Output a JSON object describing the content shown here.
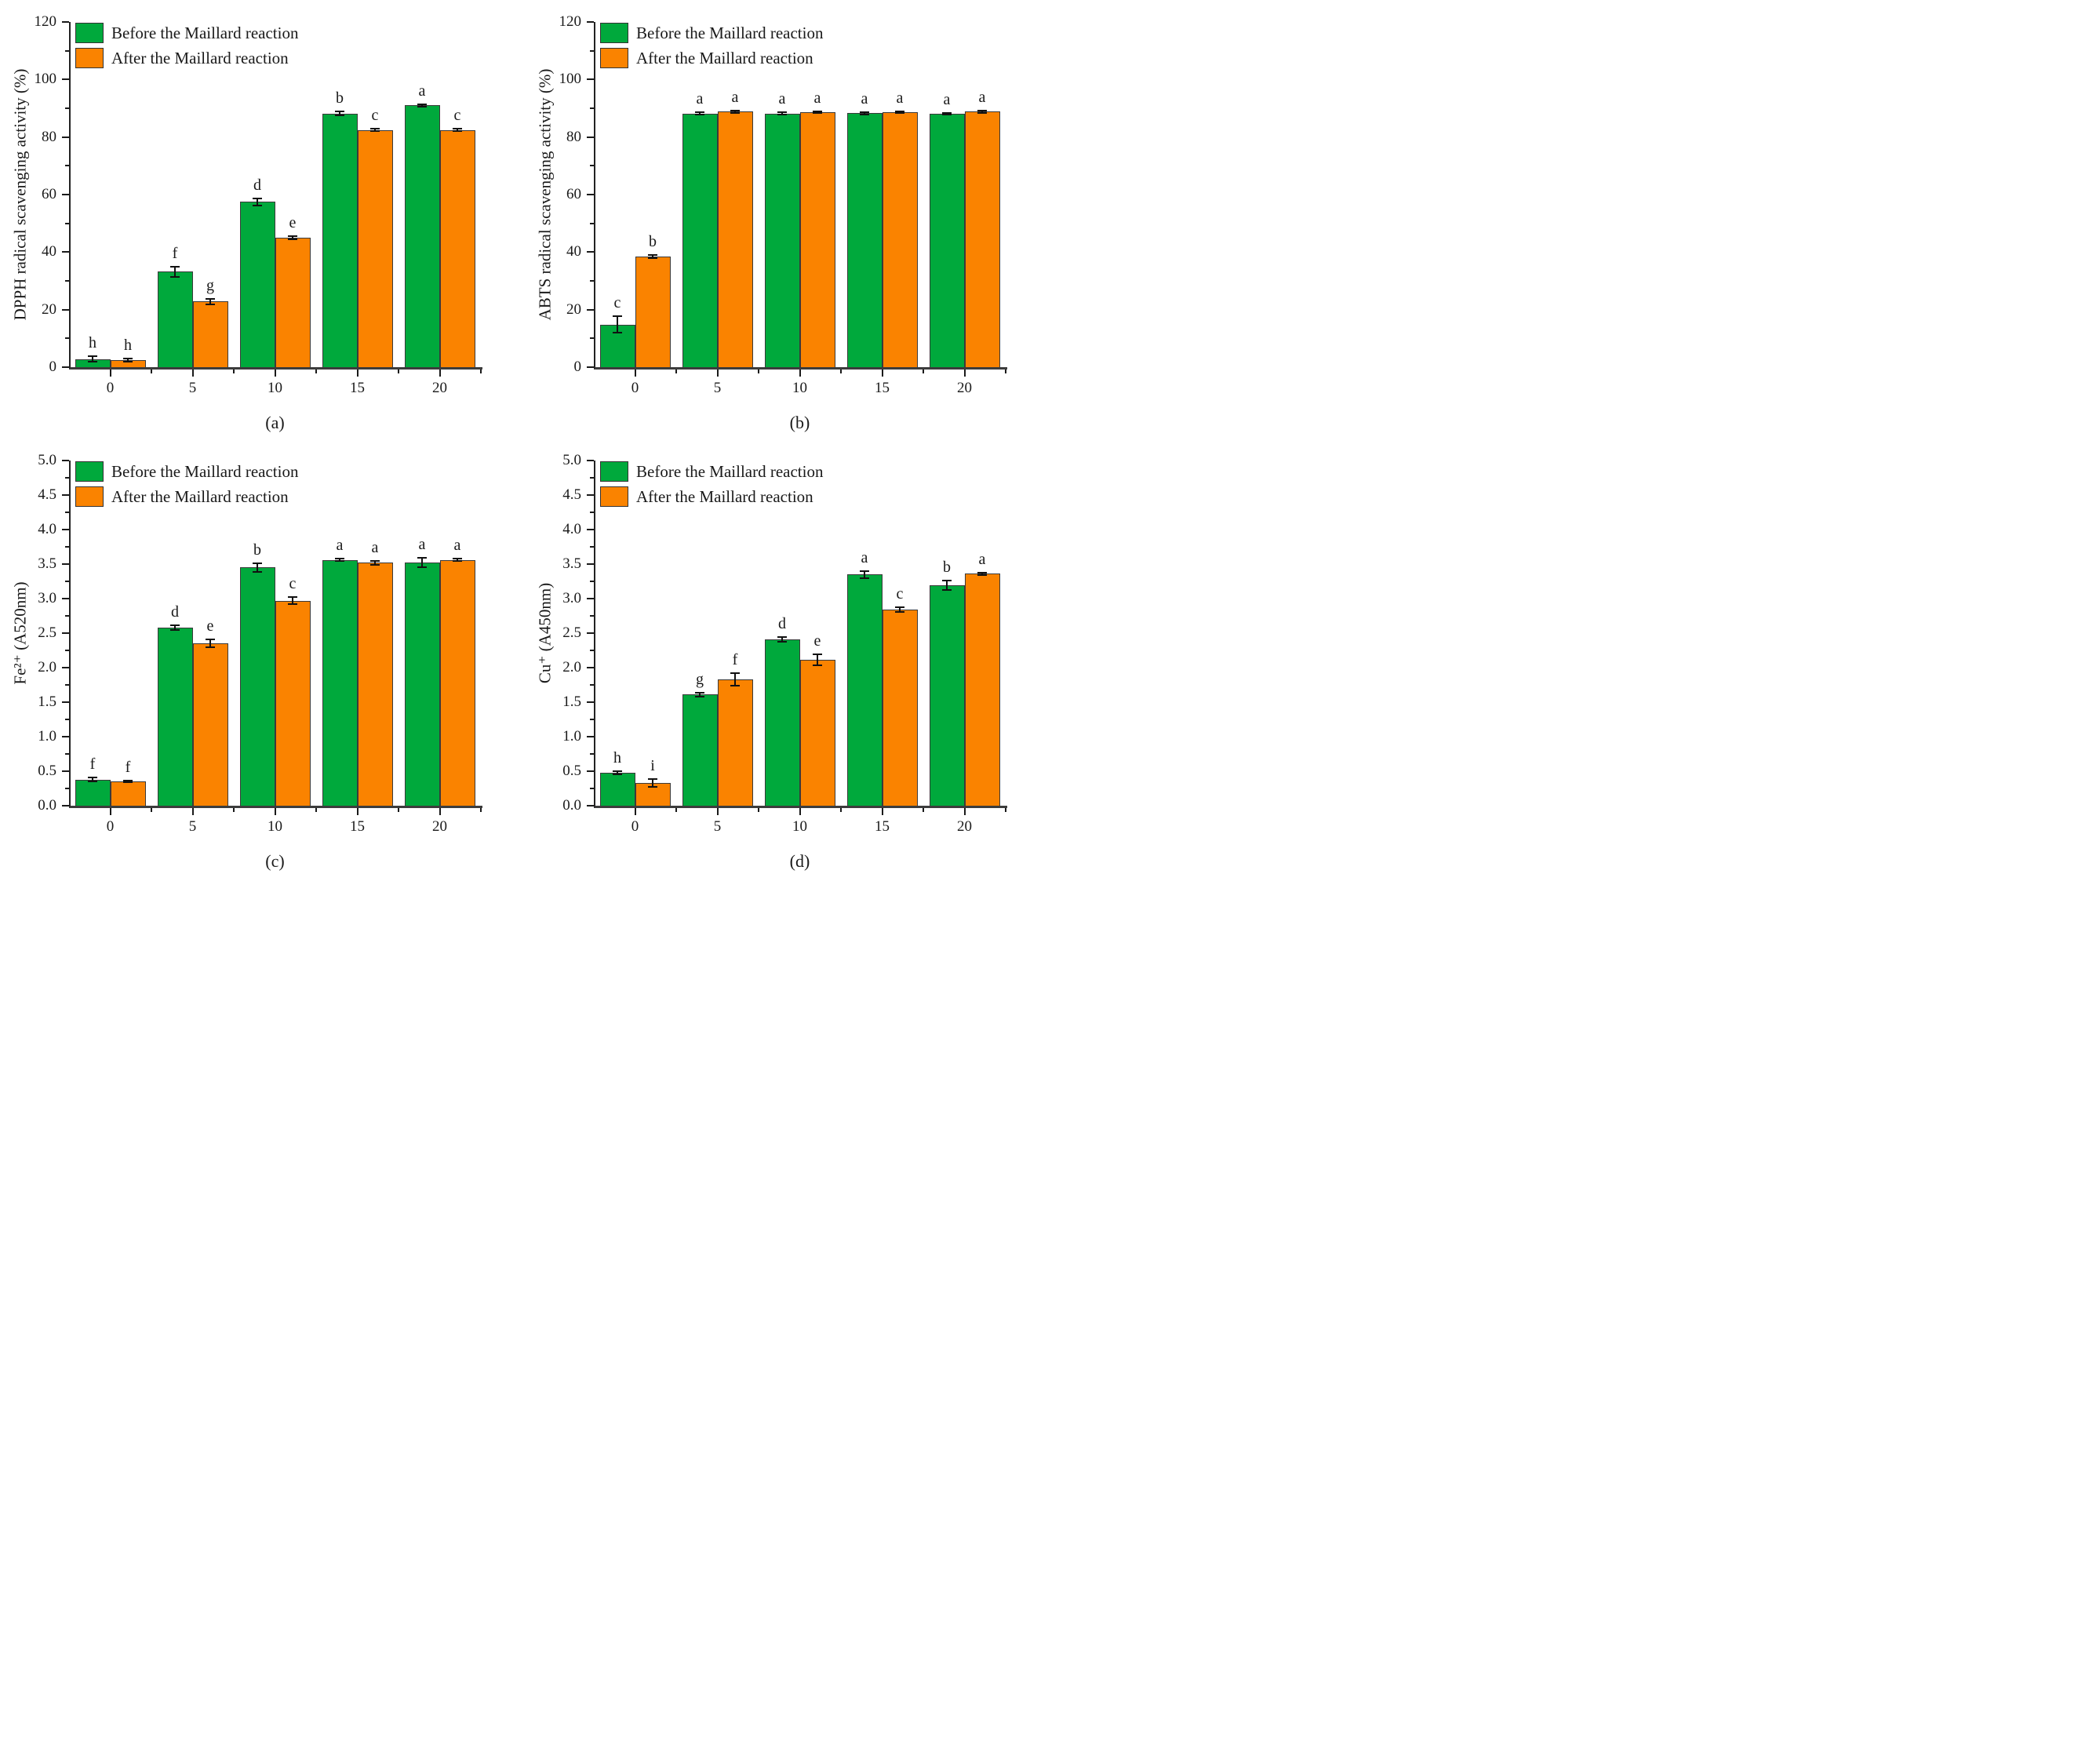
{
  "figure": {
    "legend": {
      "before": "Before the Maillard reaction",
      "after": "After the Maillard reaction"
    },
    "colors": {
      "before": "#00A93C",
      "after": "#FA8300",
      "bar_border": "#3a3a3a",
      "axis": "#222222",
      "error": "#111111",
      "text": "#1a1a1a"
    }
  },
  "chart_data": [
    {
      "id": "a",
      "type": "bar",
      "panel_label": "(a)",
      "ylabel": "DPPH radical scavenging activity (%)",
      "xlabel": "",
      "ylim": [
        0,
        120
      ],
      "ytick_step": 20,
      "ytick_labels": [
        "0",
        "20",
        "40",
        "60",
        "80",
        "100",
        "120"
      ],
      "categories": [
        "0",
        "5",
        "10",
        "15",
        "20"
      ],
      "legend_position": "top-left",
      "grid": false,
      "series": [
        {
          "name": "Before the Maillard reaction",
          "values": [
            2.8,
            33.2,
            57.5,
            88.2,
            91.0
          ],
          "errors": [
            0.9,
            1.8,
            1.2,
            0.6,
            0.5
          ],
          "letters": [
            "h",
            "f",
            "d",
            "b",
            "a"
          ]
        },
        {
          "name": "After the Maillard reaction",
          "values": [
            2.5,
            22.8,
            45.0,
            82.5,
            82.5
          ],
          "errors": [
            0.5,
            0.9,
            0.6,
            0.4,
            0.4
          ],
          "letters": [
            "h",
            "g",
            "e",
            "c",
            "c"
          ]
        }
      ]
    },
    {
      "id": "b",
      "type": "bar",
      "panel_label": "(b)",
      "ylabel": "ABTS radical scavenging activity (%)",
      "xlabel": "",
      "ylim": [
        0,
        120
      ],
      "ytick_step": 20,
      "ytick_labels": [
        "0",
        "20",
        "40",
        "60",
        "80",
        "100",
        "120"
      ],
      "categories": [
        "0",
        "5",
        "10",
        "15",
        "20"
      ],
      "legend_position": "top-left",
      "grid": false,
      "series": [
        {
          "name": "Before the Maillard reaction",
          "values": [
            14.8,
            88.2,
            88.2,
            88.3,
            88.1
          ],
          "errors": [
            2.8,
            0.4,
            0.4,
            0.4,
            0.4
          ],
          "letters": [
            "c",
            "a",
            "a",
            "a",
            "a"
          ]
        },
        {
          "name": "After the Maillard reaction",
          "values": [
            38.5,
            88.8,
            88.7,
            88.7,
            88.8
          ],
          "errors": [
            0.6,
            0.3,
            0.3,
            0.3,
            0.3
          ],
          "letters": [
            "b",
            "a",
            "a",
            "a",
            "a"
          ]
        }
      ]
    },
    {
      "id": "c",
      "type": "bar",
      "panel_label": "(c)",
      "ylabel": "Fe²⁺ (A520nm)",
      "xlabel": "",
      "ylim": [
        0,
        5
      ],
      "ytick_step": 0.5,
      "ytick_labels": [
        "0.0",
        "0.5",
        "1.0",
        "1.5",
        "2.0",
        "2.5",
        "3.0",
        "3.5",
        "4.0",
        "4.5",
        "5.0"
      ],
      "categories": [
        "0",
        "5",
        "10",
        "15",
        "20"
      ],
      "legend_position": "top-left",
      "grid": false,
      "series": [
        {
          "name": "Before the Maillard reaction",
          "values": [
            0.38,
            2.58,
            3.45,
            3.56,
            3.52
          ],
          "errors": [
            0.03,
            0.03,
            0.06,
            0.02,
            0.07
          ],
          "letters": [
            "f",
            "d",
            "b",
            "a",
            "a"
          ]
        },
        {
          "name": "After the Maillard reaction",
          "values": [
            0.35,
            2.35,
            2.97,
            3.52,
            3.56
          ],
          "errors": [
            0.01,
            0.06,
            0.05,
            0.03,
            0.02
          ],
          "letters": [
            "f",
            "e",
            "c",
            "a",
            "a"
          ]
        }
      ]
    },
    {
      "id": "d",
      "type": "bar",
      "panel_label": "(d)",
      "ylabel": "Cu⁺ (A450nm)",
      "xlabel": "",
      "ylim": [
        0,
        5
      ],
      "ytick_step": 0.5,
      "ytick_labels": [
        "0.0",
        "0.5",
        "1.0",
        "1.5",
        "2.0",
        "2.5",
        "3.0",
        "3.5",
        "4.0",
        "4.5",
        "5.0"
      ],
      "categories": [
        "0",
        "5",
        "10",
        "15",
        "20"
      ],
      "legend_position": "top-left",
      "grid": false,
      "series": [
        {
          "name": "Before the Maillard reaction",
          "values": [
            0.48,
            1.61,
            2.41,
            3.35,
            3.19
          ],
          "errors": [
            0.02,
            0.03,
            0.03,
            0.05,
            0.07
          ],
          "letters": [
            "h",
            "g",
            "d",
            "a",
            "b"
          ]
        },
        {
          "name": "After the Maillard reaction",
          "values": [
            0.33,
            1.83,
            2.11,
            2.84,
            3.36
          ],
          "errors": [
            0.06,
            0.09,
            0.08,
            0.03,
            0.02
          ],
          "letters": [
            "i",
            "f",
            "e",
            "c",
            "a"
          ]
        }
      ]
    }
  ]
}
